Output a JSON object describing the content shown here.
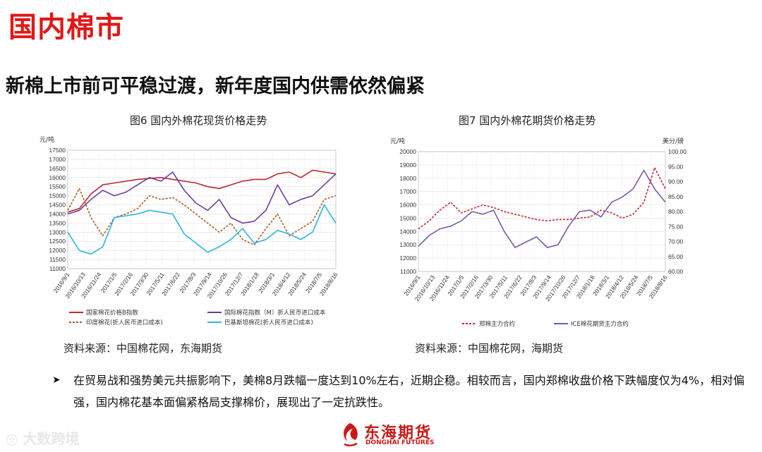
{
  "page": {
    "title": "国内棉市",
    "subtitle": "新棉上市前可平稳过渡，新年度国内供需依然偏紧",
    "bullet": "在贸易战和强势美元共振影响下，美棉8月跌幅一度达到10%左右，近期企稳。相较而言，国内郑棉收盘价格下跌幅度仅为4%，相对偏强，国内棉花基本面偏紧格局支撑棉价，展现出了一定抗跌性。",
    "watermark": "大数跨境",
    "logo_text": "东海期货",
    "logo_sub": "DONGHAI FUTURES",
    "colors": {
      "title": "#e01818",
      "logo": "#c81818"
    }
  },
  "chart_data": [
    {
      "type": "line",
      "title": "图6 国内外棉花现货价格走势",
      "ylabel": "元/吨",
      "ylim": [
        11000,
        17500
      ],
      "yticks": [
        "11000",
        "11500",
        "12000",
        "12500",
        "13000",
        "13500",
        "14000",
        "14500",
        "15000",
        "15500",
        "16000",
        "16500",
        "17000",
        "17500"
      ],
      "xticks": [
        "2016/9/1",
        "2016/10/13",
        "2016/11/24",
        "2017/1/5",
        "2017/2/16",
        "2017/3/30",
        "2017/5/11",
        "2017/6/22",
        "2017/8/3",
        "2017/9/14",
        "2017/10/26",
        "2017/12/7",
        "2018/1/18",
        "2018/3/1",
        "2018/4/12",
        "2018/5/24",
        "2018/7/5",
        "2018/8/16"
      ],
      "source": "资料来源：中国棉花网，东海期货",
      "grid": true,
      "series": [
        {
          "name": "国家棉花价格B指数",
          "color": "#c0282d",
          "style": "solid",
          "values": [
            14100,
            14300,
            15100,
            15600,
            15700,
            15800,
            15900,
            15950,
            16000,
            15900,
            15800,
            15700,
            15500,
            15400,
            15600,
            15800,
            15900,
            15900,
            16200,
            16300,
            16000,
            16400,
            16300,
            16200
          ]
        },
        {
          "name": "国际棉花指数（M）折人民币进口成本",
          "color": "#6b3fa0",
          "style": "solid",
          "values": [
            14000,
            14200,
            14800,
            15300,
            15000,
            15200,
            15600,
            16000,
            15800,
            16300,
            15300,
            14600,
            14200,
            14800,
            13800,
            13500,
            13600,
            14200,
            15600,
            14500,
            14800,
            15000,
            15600,
            16200
          ]
        },
        {
          "name": "印度棉花(折人民币进口成本)",
          "color": "#b05a1e",
          "style": "dashed",
          "values": [
            14200,
            15400,
            13800,
            12800,
            13800,
            14000,
            14300,
            15000,
            14800,
            14900,
            14500,
            14000,
            13500,
            13000,
            13500,
            12600,
            12300,
            13200,
            14000,
            12800,
            13200,
            13600,
            14800,
            15000
          ]
        },
        {
          "name": "巴基斯坦棉花(折人民币进口成本)",
          "color": "#2eb3e0",
          "style": "solid",
          "values": [
            13000,
            12000,
            11800,
            12200,
            13800,
            13900,
            14000,
            14200,
            14100,
            14000,
            12900,
            12400,
            11900,
            12200,
            12600,
            13200,
            12400,
            12600,
            13100,
            12900,
            12600,
            13000,
            14500,
            13500
          ]
        }
      ]
    },
    {
      "type": "line",
      "title": "图7 国内外棉花期货价格走势",
      "ylabel": "元/吨",
      "ylabel_right": "美分/磅",
      "ylim": [
        11000,
        20000
      ],
      "ylim_right": [
        60,
        100
      ],
      "yticks": [
        "11000",
        "12000",
        "13000",
        "14000",
        "15000",
        "16000",
        "17000",
        "18000",
        "19000",
        "20000"
      ],
      "yticks_right": [
        "60.00",
        "65.00",
        "70.00",
        "75.00",
        "80.00",
        "85.00",
        "90.00",
        "95.00",
        "100.00"
      ],
      "xticks": [
        "2016/9/1",
        "2016/10/13",
        "2016/11/24",
        "2017/1/5",
        "2017/2/16",
        "2017/3/30",
        "2017/5/11",
        "2017/6/22",
        "2017/8/3",
        "2017/9/14",
        "2017/10/26",
        "2017/12/7",
        "2018/1/18",
        "2018/3/1",
        "2018/4/12",
        "2018/5/24",
        "2018/7/5",
        "2018/8/16"
      ],
      "source": "资料来源：中国棉花网，海期货",
      "grid": true,
      "series": [
        {
          "name": "郑棉主力合约",
          "color": "#c0282d",
          "style": "dashed",
          "axis": "left",
          "values": [
            14200,
            14800,
            15600,
            16200,
            15400,
            15700,
            16000,
            15800,
            15500,
            15300,
            15100,
            14900,
            14800,
            14900,
            14900,
            15000,
            15100,
            15600,
            15400,
            15000,
            15300,
            16200,
            18800,
            17200
          ]
        },
        {
          "name": "ICE棉花期货主力合约",
          "color": "#7a5aa8",
          "style": "solid",
          "axis": "left",
          "values": [
            12900,
            13700,
            14200,
            14400,
            14800,
            15500,
            15300,
            15600,
            14000,
            12800,
            13200,
            13600,
            12800,
            13000,
            14400,
            15500,
            15600,
            15100,
            16200,
            16600,
            17200,
            18600,
            17200,
            16200
          ]
        }
      ]
    }
  ]
}
